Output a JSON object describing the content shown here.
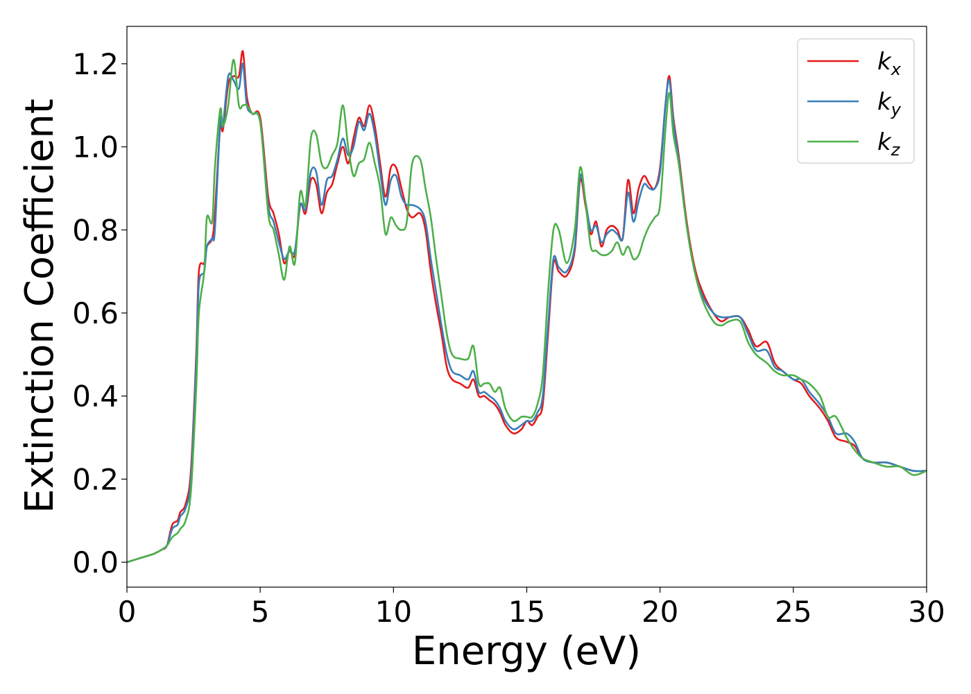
{
  "chart_data": {
    "type": "line",
    "title": "",
    "xlabel": "Energy (eV)",
    "ylabel": "Extinction Coefficient",
    "xlim": [
      0,
      30
    ],
    "ylim": [
      -0.06,
      1.29
    ],
    "xticks": [
      0,
      5,
      10,
      15,
      20,
      25,
      30
    ],
    "yticks": [
      0.0,
      0.2,
      0.4,
      0.6,
      0.8,
      1.0,
      1.2
    ],
    "grid": false,
    "legend_position": "top-right",
    "series": [
      {
        "name": "k",
        "sub": "x",
        "color": "#e41a1c",
        "x": [
          0,
          0.5,
          1.0,
          1.3,
          1.5,
          1.7,
          1.9,
          2.0,
          2.2,
          2.4,
          2.6,
          2.7,
          2.9,
          3.0,
          3.2,
          3.3,
          3.5,
          3.6,
          3.8,
          4.0,
          4.2,
          4.35,
          4.5,
          4.7,
          5.0,
          5.3,
          5.5,
          5.7,
          5.9,
          6.1,
          6.3,
          6.5,
          6.7,
          6.9,
          7.1,
          7.3,
          7.5,
          7.7,
          7.9,
          8.1,
          8.3,
          8.5,
          8.7,
          8.9,
          9.1,
          9.3,
          9.5,
          9.7,
          9.9,
          10.1,
          10.3,
          10.5,
          10.7,
          11.0,
          11.2,
          11.4,
          11.6,
          11.8,
          12.0,
          12.2,
          12.5,
          12.8,
          13.0,
          13.2,
          13.4,
          13.6,
          13.8,
          14.0,
          14.2,
          14.5,
          14.8,
          15.0,
          15.2,
          15.4,
          15.6,
          15.8,
          16.0,
          16.2,
          16.5,
          16.8,
          17.0,
          17.2,
          17.4,
          17.6,
          17.8,
          18.0,
          18.2,
          18.4,
          18.6,
          18.8,
          19.0,
          19.2,
          19.4,
          19.6,
          19.8,
          20.0,
          20.2,
          20.35,
          20.5,
          20.7,
          21.0,
          21.3,
          21.6,
          22.0,
          22.3,
          22.6,
          23.0,
          23.3,
          23.6,
          24.0,
          24.3,
          24.6,
          25.0,
          25.3,
          25.6,
          26.0,
          26.3,
          26.6,
          27.0,
          27.3,
          27.6,
          28.0,
          28.5,
          29.0,
          29.5,
          30.0
        ],
        "y": [
          0.0,
          0.01,
          0.02,
          0.03,
          0.04,
          0.09,
          0.1,
          0.12,
          0.14,
          0.22,
          0.5,
          0.7,
          0.72,
          0.76,
          0.78,
          0.84,
          1.05,
          1.04,
          1.15,
          1.17,
          1.17,
          1.23,
          1.12,
          1.08,
          1.07,
          0.88,
          0.84,
          0.79,
          0.72,
          0.75,
          0.74,
          0.86,
          0.84,
          0.92,
          0.91,
          0.84,
          0.89,
          0.91,
          0.96,
          1.0,
          0.96,
          1.02,
          1.07,
          1.05,
          1.1,
          1.05,
          0.96,
          0.88,
          0.95,
          0.95,
          0.9,
          0.85,
          0.83,
          0.84,
          0.8,
          0.7,
          0.62,
          0.55,
          0.47,
          0.44,
          0.43,
          0.42,
          0.44,
          0.4,
          0.4,
          0.39,
          0.38,
          0.36,
          0.33,
          0.31,
          0.32,
          0.34,
          0.33,
          0.35,
          0.38,
          0.55,
          0.72,
          0.7,
          0.69,
          0.75,
          0.92,
          0.86,
          0.79,
          0.82,
          0.76,
          0.8,
          0.81,
          0.8,
          0.78,
          0.92,
          0.84,
          0.9,
          0.93,
          0.91,
          0.9,
          0.95,
          1.1,
          1.17,
          1.07,
          0.98,
          0.82,
          0.71,
          0.65,
          0.6,
          0.58,
          0.59,
          0.59,
          0.56,
          0.52,
          0.53,
          0.48,
          0.46,
          0.44,
          0.43,
          0.4,
          0.37,
          0.34,
          0.3,
          0.29,
          0.28,
          0.25,
          0.24,
          0.24,
          0.23,
          0.22,
          0.22
        ]
      },
      {
        "name": "k",
        "sub": "y",
        "color": "#377eb8",
        "x": [
          0,
          0.5,
          1.0,
          1.3,
          1.5,
          1.7,
          1.9,
          2.0,
          2.2,
          2.4,
          2.6,
          2.7,
          2.9,
          3.0,
          3.2,
          3.3,
          3.5,
          3.6,
          3.8,
          4.0,
          4.2,
          4.35,
          4.5,
          4.7,
          5.0,
          5.3,
          5.5,
          5.7,
          5.9,
          6.1,
          6.3,
          6.5,
          6.7,
          6.9,
          7.1,
          7.3,
          7.5,
          7.7,
          7.9,
          8.1,
          8.3,
          8.5,
          8.7,
          8.9,
          9.1,
          9.3,
          9.5,
          9.7,
          9.9,
          10.1,
          10.3,
          10.5,
          10.7,
          11.0,
          11.2,
          11.4,
          11.6,
          11.8,
          12.0,
          12.2,
          12.5,
          12.8,
          13.0,
          13.2,
          13.4,
          13.6,
          13.8,
          14.0,
          14.2,
          14.5,
          14.8,
          15.0,
          15.2,
          15.4,
          15.6,
          15.8,
          16.0,
          16.2,
          16.5,
          16.8,
          17.0,
          17.2,
          17.4,
          17.6,
          17.8,
          18.0,
          18.2,
          18.4,
          18.6,
          18.8,
          19.0,
          19.2,
          19.4,
          19.6,
          19.8,
          20.0,
          20.2,
          20.35,
          20.5,
          20.7,
          21.0,
          21.3,
          21.6,
          22.0,
          22.3,
          22.6,
          23.0,
          23.3,
          23.6,
          24.0,
          24.3,
          24.6,
          25.0,
          25.3,
          25.6,
          26.0,
          26.3,
          26.6,
          27.0,
          27.3,
          27.6,
          28.0,
          28.5,
          29.0,
          29.5,
          30.0
        ],
        "y": [
          0.0,
          0.01,
          0.02,
          0.03,
          0.04,
          0.08,
          0.09,
          0.11,
          0.13,
          0.2,
          0.48,
          0.67,
          0.7,
          0.76,
          0.78,
          0.8,
          1.06,
          1.05,
          1.17,
          1.16,
          1.14,
          1.2,
          1.1,
          1.08,
          1.06,
          0.86,
          0.82,
          0.77,
          0.73,
          0.75,
          0.75,
          0.86,
          0.85,
          0.94,
          0.94,
          0.86,
          0.92,
          0.93,
          0.97,
          1.02,
          0.98,
          1.0,
          1.06,
          1.04,
          1.08,
          1.03,
          0.94,
          0.86,
          0.92,
          0.93,
          0.88,
          0.86,
          0.86,
          0.85,
          0.82,
          0.73,
          0.65,
          0.57,
          0.5,
          0.46,
          0.45,
          0.44,
          0.46,
          0.41,
          0.41,
          0.4,
          0.39,
          0.37,
          0.34,
          0.32,
          0.33,
          0.34,
          0.34,
          0.36,
          0.4,
          0.57,
          0.73,
          0.71,
          0.7,
          0.76,
          0.93,
          0.87,
          0.8,
          0.81,
          0.77,
          0.79,
          0.8,
          0.79,
          0.78,
          0.89,
          0.82,
          0.87,
          0.91,
          0.9,
          0.9,
          0.94,
          1.1,
          1.16,
          1.06,
          0.97,
          0.81,
          0.7,
          0.64,
          0.6,
          0.59,
          0.59,
          0.59,
          0.55,
          0.51,
          0.51,
          0.47,
          0.46,
          0.44,
          0.44,
          0.41,
          0.38,
          0.35,
          0.31,
          0.31,
          0.29,
          0.25,
          0.24,
          0.24,
          0.23,
          0.22,
          0.22
        ]
      },
      {
        "name": "k",
        "sub": "z",
        "color": "#4daf4a",
        "x": [
          0,
          0.5,
          1.0,
          1.3,
          1.5,
          1.7,
          1.9,
          2.0,
          2.2,
          2.4,
          2.6,
          2.7,
          2.9,
          3.0,
          3.2,
          3.3,
          3.5,
          3.6,
          3.8,
          4.0,
          4.2,
          4.35,
          4.5,
          4.7,
          5.0,
          5.3,
          5.5,
          5.7,
          5.9,
          6.1,
          6.3,
          6.5,
          6.7,
          6.9,
          7.1,
          7.3,
          7.5,
          7.7,
          7.9,
          8.1,
          8.3,
          8.5,
          8.7,
          8.9,
          9.1,
          9.3,
          9.5,
          9.7,
          9.9,
          10.1,
          10.3,
          10.5,
          10.7,
          11.0,
          11.2,
          11.4,
          11.6,
          11.8,
          12.0,
          12.2,
          12.5,
          12.8,
          13.0,
          13.2,
          13.4,
          13.6,
          13.8,
          14.0,
          14.2,
          14.5,
          14.8,
          15.0,
          15.2,
          15.4,
          15.6,
          15.8,
          16.0,
          16.2,
          16.5,
          16.8,
          17.0,
          17.2,
          17.4,
          17.6,
          17.8,
          18.0,
          18.2,
          18.4,
          18.6,
          18.8,
          19.0,
          19.2,
          19.4,
          19.6,
          19.8,
          20.0,
          20.2,
          20.35,
          20.5,
          20.7,
          21.0,
          21.3,
          21.6,
          22.0,
          22.3,
          22.6,
          23.0,
          23.3,
          23.6,
          24.0,
          24.3,
          24.6,
          25.0,
          25.3,
          25.6,
          26.0,
          26.3,
          26.6,
          27.0,
          27.3,
          27.6,
          28.0,
          28.5,
          29.0,
          29.5,
          30.0
        ],
        "y": [
          0.0,
          0.01,
          0.02,
          0.03,
          0.04,
          0.06,
          0.07,
          0.08,
          0.1,
          0.17,
          0.42,
          0.6,
          0.7,
          0.83,
          0.82,
          0.95,
          1.09,
          1.05,
          1.1,
          1.21,
          1.1,
          1.1,
          1.1,
          1.08,
          1.06,
          0.84,
          0.8,
          0.74,
          0.68,
          0.76,
          0.72,
          0.89,
          0.86,
          1.02,
          1.03,
          0.96,
          0.95,
          0.98,
          1.01,
          1.1,
          1.0,
          0.93,
          0.96,
          0.97,
          1.01,
          0.96,
          0.9,
          0.79,
          0.83,
          0.81,
          0.8,
          0.82,
          0.96,
          0.97,
          0.9,
          0.83,
          0.73,
          0.64,
          0.55,
          0.5,
          0.49,
          0.49,
          0.52,
          0.43,
          0.43,
          0.43,
          0.41,
          0.42,
          0.37,
          0.34,
          0.35,
          0.35,
          0.35,
          0.38,
          0.45,
          0.65,
          0.8,
          0.8,
          0.72,
          0.8,
          0.95,
          0.87,
          0.76,
          0.75,
          0.74,
          0.74,
          0.75,
          0.77,
          0.74,
          0.76,
          0.73,
          0.74,
          0.78,
          0.81,
          0.83,
          0.86,
          1.04,
          1.13,
          1.03,
          0.96,
          0.81,
          0.7,
          0.63,
          0.58,
          0.57,
          0.58,
          0.58,
          0.53,
          0.5,
          0.48,
          0.46,
          0.45,
          0.45,
          0.44,
          0.43,
          0.4,
          0.35,
          0.35,
          0.3,
          0.27,
          0.25,
          0.24,
          0.23,
          0.23,
          0.21,
          0.22
        ]
      }
    ]
  }
}
